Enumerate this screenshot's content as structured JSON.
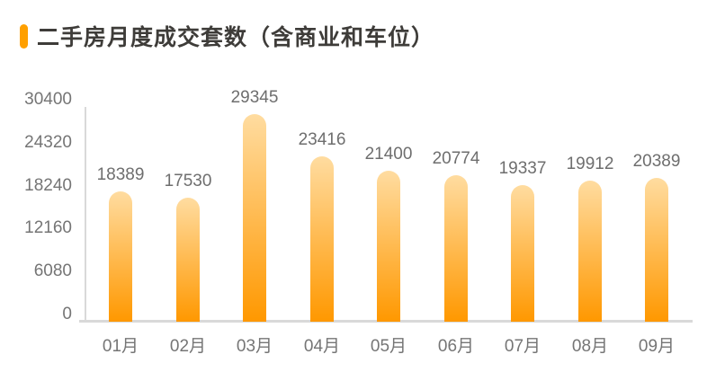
{
  "header": {
    "title": "二手房月度成交套数（含商业和车位）",
    "bullet_icon": "orange-pill-bullet",
    "bullet_color": "#FFA000",
    "title_color": "#3E3C39"
  },
  "chart_data": {
    "type": "bar",
    "title": "二手房月度成交套数（含商业和车位）",
    "categories": [
      "01月",
      "02月",
      "03月",
      "04月",
      "05月",
      "06月",
      "07月",
      "08月",
      "09月"
    ],
    "values": [
      18389,
      17530,
      29345,
      23416,
      21400,
      20774,
      19337,
      19912,
      20389
    ],
    "value_labels": [
      "18389",
      "17530",
      "29345",
      "23416",
      "21400",
      "20774",
      "19337",
      "19912",
      "20389"
    ],
    "xlabel": "",
    "ylabel": "",
    "ylim": [
      0,
      30400
    ],
    "yticks": [
      0,
      6080,
      12160,
      18240,
      24320,
      30400
    ],
    "grid": false,
    "legend": null,
    "bar_gradient_top": "#FFDCA0",
    "bar_gradient_bottom": "#FF9800",
    "label_color": "#6E6E6E",
    "tick_color": "#757575",
    "axis_color": "#D9D9D9",
    "background": "#FFFFFF"
  }
}
